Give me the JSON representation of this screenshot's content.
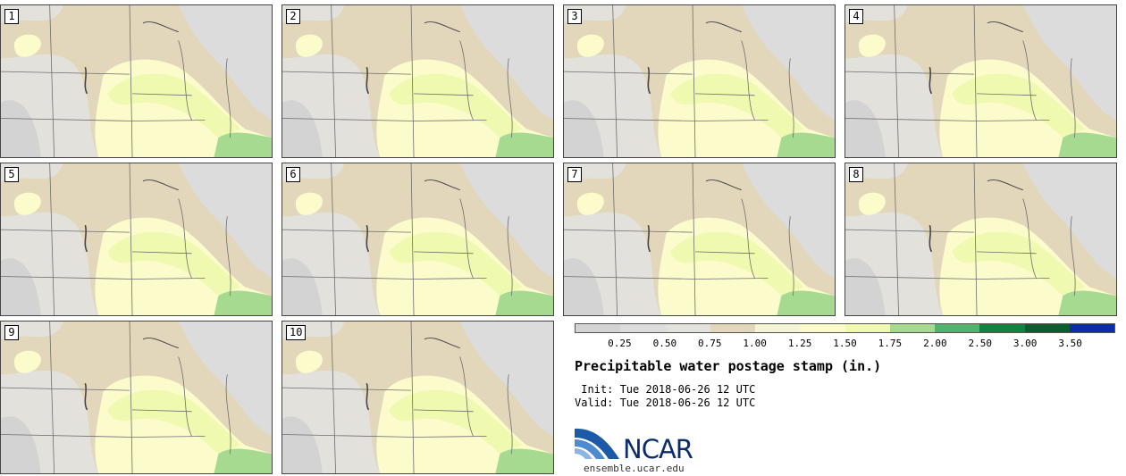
{
  "stamps": [
    {
      "label": "1"
    },
    {
      "label": "2"
    },
    {
      "label": "3"
    },
    {
      "label": "4"
    },
    {
      "label": "5"
    },
    {
      "label": "6"
    },
    {
      "label": "7"
    },
    {
      "label": "8"
    },
    {
      "label": "9"
    },
    {
      "label": "10"
    }
  ],
  "colorbar": {
    "colors": [
      "#d3d3d3",
      "#dcdcdc",
      "#e2e1dc",
      "#e2d6bb",
      "#f4f4d6",
      "#fbfbcc",
      "#f0f9b0",
      "#a6da90",
      "#4db46e",
      "#0f8340",
      "#0a5e2f",
      "#0c2ca8"
    ],
    "ticks": [
      "0.25",
      "0.50",
      "0.75",
      "1.00",
      "1.25",
      "1.50",
      "1.75",
      "2.00",
      "2.50",
      "3.00",
      "3.50"
    ]
  },
  "title": "Precipitable water postage stamp (in.)",
  "init": " Init: Tue 2018-06-26 12 UTC",
  "valid": "Valid: Tue 2018-06-26 12 UTC",
  "logo": {
    "text": "NCAR",
    "url": "ensemble.ucar.edu"
  }
}
